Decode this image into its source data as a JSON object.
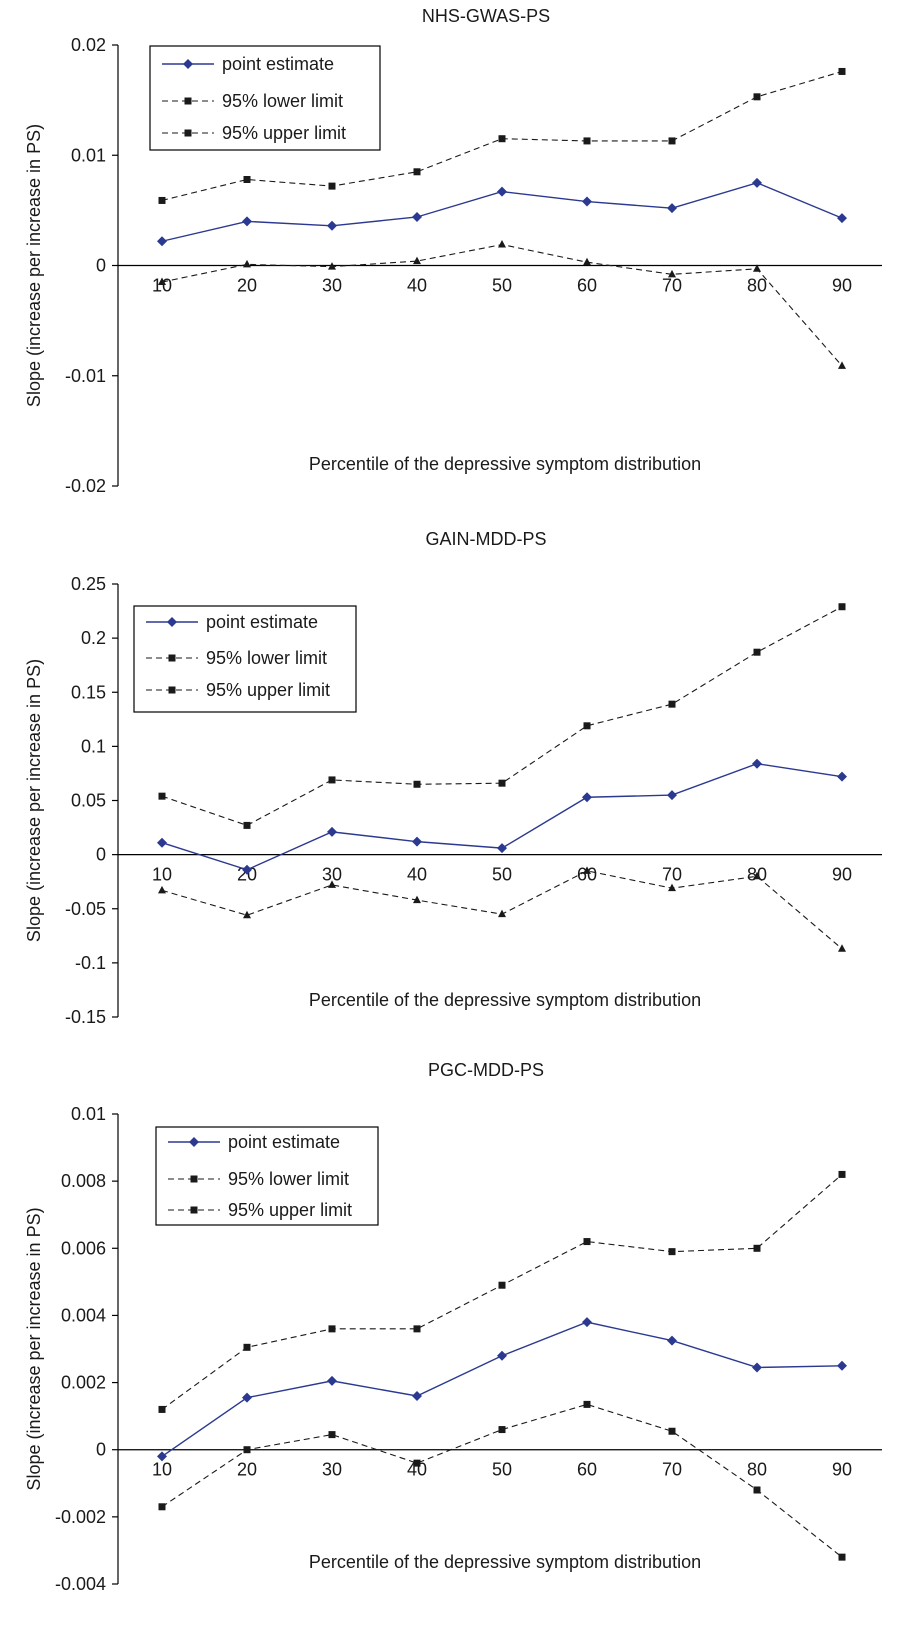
{
  "chart_data": [
    {
      "type": "line",
      "title": "NHS-GWAS-PS",
      "xlabel": "Percentile of the depressive symptom distribution",
      "ylabel": "Slope (increase per increase in PS)",
      "categories": [
        "10",
        "20",
        "30",
        "40",
        "50",
        "60",
        "70",
        "80",
        "90"
      ],
      "ylim": [
        -0.02,
        0.02
      ],
      "yticks": [
        "0.02",
        "0.01",
        "0",
        "-0.01",
        "-0.02"
      ],
      "ytick_values": [
        0.02,
        0.01,
        0,
        -0.01,
        -0.02
      ],
      "legend_position": "top-left",
      "series": [
        {
          "name": "point estimate",
          "color": "#2b3990",
          "marker": "diamond",
          "dash": "solid",
          "values": [
            0.0022,
            0.004,
            0.0036,
            0.0044,
            0.0067,
            0.0058,
            0.0052,
            0.0075,
            0.0043
          ]
        },
        {
          "name": "95% lower limit",
          "color": "#1a1a1a",
          "marker": "triangle",
          "dash": "dashed",
          "values": [
            -0.0015,
            0.0001,
            -0.0001,
            0.0004,
            0.0019,
            0.0003,
            -0.0008,
            -0.0003,
            -0.0091
          ]
        },
        {
          "name": "95% upper limit",
          "color": "#1a1a1a",
          "marker": "square",
          "dash": "dashed",
          "values": [
            0.0059,
            0.0078,
            0.0072,
            0.0085,
            0.0115,
            0.0113,
            0.0113,
            0.0153,
            0.0176
          ]
        }
      ]
    },
    {
      "type": "line",
      "title": "GAIN-MDD-PS",
      "xlabel": "Percentile of the depressive symptom distribution",
      "ylabel": "Slope (increase per increase in PS)",
      "categories": [
        "10",
        "20",
        "30",
        "40",
        "50",
        "60",
        "70",
        "80",
        "90"
      ],
      "ylim": [
        -0.15,
        0.25
      ],
      "yticks": [
        "0.25",
        "0.2",
        "0.15",
        "0.1",
        "0.05",
        "0",
        "-0.05",
        "-0.1",
        "-0.15"
      ],
      "ytick_values": [
        0.25,
        0.2,
        0.15,
        0.1,
        0.05,
        0,
        -0.05,
        -0.1,
        -0.15
      ],
      "legend_position": "top-left",
      "series": [
        {
          "name": "point estimate",
          "color": "#2b3990",
          "marker": "diamond",
          "dash": "solid",
          "values": [
            0.011,
            -0.014,
            0.021,
            0.012,
            0.006,
            0.053,
            0.055,
            0.084,
            0.072
          ]
        },
        {
          "name": "95% lower limit",
          "color": "#1a1a1a",
          "marker": "triangle",
          "dash": "dashed",
          "values": [
            -0.033,
            -0.056,
            -0.028,
            -0.042,
            -0.055,
            -0.015,
            -0.031,
            -0.02,
            -0.087
          ]
        },
        {
          "name": "95% upper limit",
          "color": "#1a1a1a",
          "marker": "square",
          "dash": "dashed",
          "values": [
            0.054,
            0.027,
            0.069,
            0.065,
            0.066,
            0.119,
            0.139,
            0.187,
            0.229
          ]
        }
      ]
    },
    {
      "type": "line",
      "title": "PGC-MDD-PS",
      "xlabel": "Percentile of the depressive symptom distribution",
      "ylabel": "Slope (increase per increase in PS)",
      "categories": [
        "10",
        "20",
        "30",
        "40",
        "50",
        "60",
        "70",
        "80",
        "90"
      ],
      "ylim": [
        -0.004,
        0.01
      ],
      "yticks": [
        "0.01",
        "0.008",
        "0.006",
        "0.004",
        "0.002",
        "0",
        "-0.002",
        "-0.004"
      ],
      "ytick_values": [
        0.01,
        0.008,
        0.006,
        0.004,
        0.002,
        0,
        -0.002,
        -0.004
      ],
      "legend_position": "top-left",
      "series": [
        {
          "name": "point estimate",
          "color": "#2b3990",
          "marker": "diamond",
          "dash": "solid",
          "values": [
            -0.0002,
            0.00155,
            0.00205,
            0.0016,
            0.0028,
            0.0038,
            0.00325,
            0.00245,
            0.0025
          ]
        },
        {
          "name": "95% lower limit",
          "color": "#1a1a1a",
          "marker": "square",
          "dash": "dashed",
          "values": [
            -0.0017,
            0.0,
            0.00045,
            -0.0004,
            0.0006,
            0.00135,
            0.00055,
            -0.0012,
            -0.0032
          ]
        },
        {
          "name": "95% upper limit",
          "color": "#1a1a1a",
          "marker": "square",
          "dash": "dashed",
          "values": [
            0.0012,
            0.00305,
            0.0036,
            0.0036,
            0.0049,
            0.0062,
            0.0059,
            0.006,
            0.0082
          ]
        }
      ]
    }
  ]
}
